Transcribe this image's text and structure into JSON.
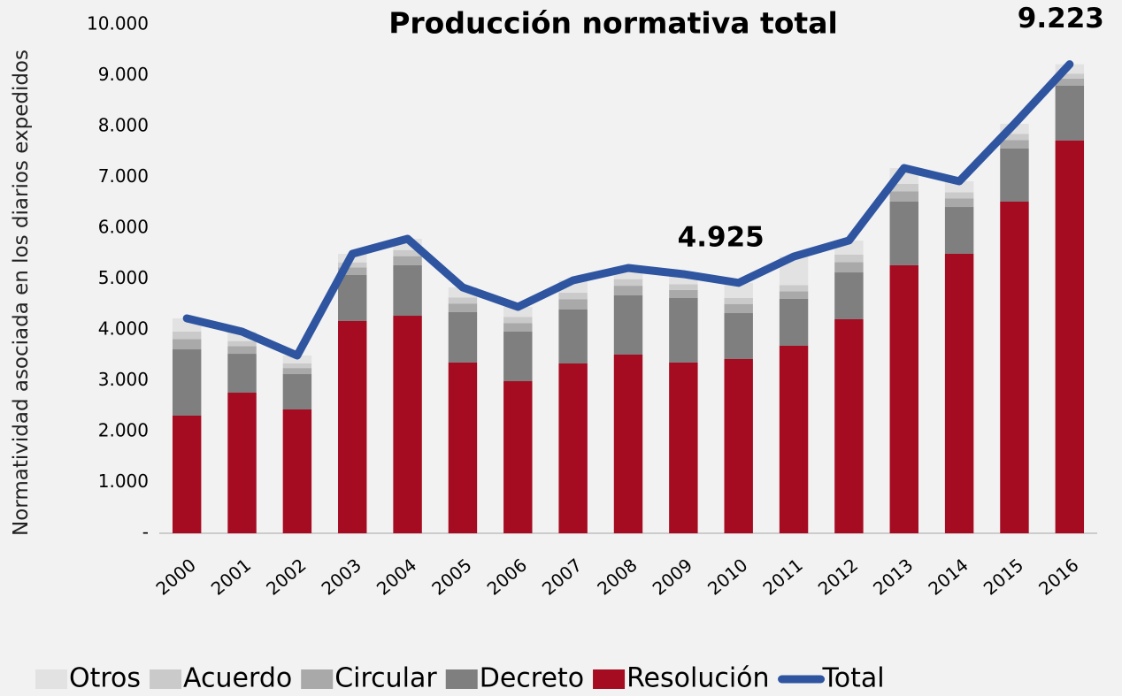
{
  "chart_data": {
    "type": "stacked-bar-line",
    "title": "Producción normativa total",
    "ylabel": "Normatividad asociada en los diarios expedidos",
    "categories": [
      "2000",
      "2001",
      "2002",
      "2003",
      "2004",
      "2005",
      "2006",
      "2007",
      "2008",
      "2009",
      "2010",
      "2011",
      "2012",
      "2013",
      "2014",
      "2015",
      "2016"
    ],
    "ylim": [
      0,
      10000
    ],
    "yticks": [
      {
        "value": 0,
        "label": "-"
      },
      {
        "value": 1000,
        "label": "1.000"
      },
      {
        "value": 2000,
        "label": "2.000"
      },
      {
        "value": 3000,
        "label": "3.000"
      },
      {
        "value": 4000,
        "label": "4.000"
      },
      {
        "value": 5000,
        "label": "5.000"
      },
      {
        "value": 6000,
        "label": "6.000"
      },
      {
        "value": 7000,
        "label": "7.000"
      },
      {
        "value": 8000,
        "label": "8.000"
      },
      {
        "value": 9000,
        "label": "9.000"
      },
      {
        "value": 10000,
        "label": "10.000"
      }
    ],
    "series": [
      {
        "name": "Otros",
        "color": "#e2e2e2",
        "values": [
          259,
          185,
          156,
          168,
          221,
          197,
          197,
          244,
          219,
          200,
          295,
          564,
          277,
          311,
          215,
          197,
          183
        ]
      },
      {
        "name": "Acuerdo",
        "color": "#cacaca",
        "values": [
          150,
          100,
          90,
          100,
          120,
          120,
          120,
          130,
          130,
          110,
          120,
          120,
          150,
          150,
          120,
          120,
          100
        ]
      },
      {
        "name": "Circular",
        "color": "#a9a9a9",
        "values": [
          200,
          150,
          120,
          150,
          180,
          170,
          170,
          200,
          190,
          160,
          180,
          150,
          200,
          200,
          170,
          170,
          140
        ]
      },
      {
        "name": "Decreto",
        "color": "#7f7f7f",
        "values": [
          1304,
          765,
          695,
          904,
          992,
          991,
          974,
          1061,
          1165,
          1269,
          904,
          922,
          921,
          1252,
          921,
          1043,
          1078
        ]
      },
      {
        "name": "Resolución",
        "color": "#a50b21",
        "values": [
          2313,
          2765,
          2435,
          4174,
          4278,
          3357,
          2991,
          3339,
          3513,
          3357,
          3426,
          3687,
          4209,
          5270,
          5496,
          6522,
          7722
        ]
      },
      {
        "name": "Total",
        "color": "#2f55a0",
        "type": "line",
        "values": [
          4226,
          3965,
          3496,
          5496,
          5791,
          4835,
          4452,
          4974,
          5217,
          5096,
          4925,
          5443,
          5757,
          7183,
          6922,
          8052,
          9223
        ],
        "value_labels": [
          null,
          null,
          null,
          null,
          null,
          null,
          null,
          null,
          null,
          null,
          "4.925",
          null,
          null,
          null,
          null,
          null,
          "9.223"
        ]
      }
    ]
  }
}
